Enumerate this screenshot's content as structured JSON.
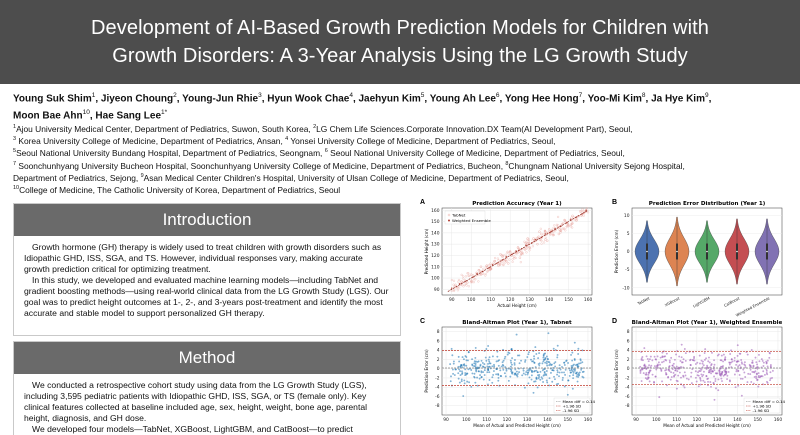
{
  "title": {
    "line1": "Development of AI-Based Growth Prediction Models for Children with",
    "line2": "Growth Disorders: A 3-Year Analysis Using the LG Growth Study"
  },
  "authors": {
    "line1": [
      {
        "name": "Young Suk Shim",
        "sup": "1"
      },
      {
        "name": "Jiyeon Choung",
        "sup": "2"
      },
      {
        "name": "Young-Jun Rhie",
        "sup": "3"
      },
      {
        "name": "Hyun Wook Chae",
        "sup": "4"
      },
      {
        "name": "Jaehyun Kim",
        "sup": "5"
      },
      {
        "name": "Young Ah Lee",
        "sup": "6"
      },
      {
        "name": "Yong Hee Hong",
        "sup": "7"
      },
      {
        "name": "Yoo-Mi Kim",
        "sup": "8"
      },
      {
        "name": "Ja Hye Kim",
        "sup": "9"
      }
    ],
    "line2": [
      {
        "name": "Moon Bae Ahn",
        "sup": "10"
      },
      {
        "name": "Hae Sang Lee",
        "sup": "1*"
      }
    ]
  },
  "affiliations": [
    [
      {
        "sup": "1",
        "text": "Ajou University Medical Center, Department of Pediatrics, Suwon, South Korea, "
      },
      {
        "sup": "2",
        "text": "LG Chem Life Sciences.Corporate Innovation.DX Team(AI Development Part), Seoul,"
      }
    ],
    [
      {
        "sup": "3",
        "text": " Korea University College of Medicine, Department of Pediatrics, Ansan, "
      },
      {
        "sup": "4",
        "text": " Yonsei University College of Medicine, Department of Pediatrics, Seoul,"
      }
    ],
    [
      {
        "sup": "5",
        "text": "Seoul National University Bundang Hospital, Department of Pediatrics, Seongnam, "
      },
      {
        "sup": "6",
        "text": " Seoul National University College of Medicine, Department of Pediatrics, Seoul,"
      }
    ],
    [
      {
        "sup": "7",
        "text": " Soonchunhyang University Bucheon Hospital, Soonchunhyang University College of Medicine, Department of Pediatrics, Bucheon, "
      },
      {
        "sup": "8",
        "text": "Chungnam National University Sejong Hospital,"
      }
    ],
    [
      {
        "sup": "",
        "text": "Department of Pediatrics, Sejong, "
      },
      {
        "sup": "9",
        "text": "Asan Medical Center Children's Hospital, University of Ulsan College of Medicine, Department of Pediatrics, Seoul,"
      }
    ],
    [
      {
        "sup": "10",
        "text": "College of Medicine, The Catholic University of Korea, Department of Pediatrics, Seoul"
      }
    ]
  ],
  "introduction": {
    "heading": "Introduction",
    "p1": "Growth hormone (GH) therapy is widely used to treat children with growth disorders such as Idiopathic GHD, ISS, SGA, and TS. However, individual responses vary, making accurate growth prediction critical for optimizing treatment.",
    "p2": "In this study, we developed and evaluated machine learning models—including TabNet and gradient boosting methods—using real-world clinical data from the LG Growth Study (LGS). Our goal was to predict height outcomes at 1-, 2-, and 3-years post-treatment and identify the most accurate and stable model to support personalized GH therapy."
  },
  "method": {
    "heading": "Method",
    "p1": "We conducted a retrospective cohort study using data from the LG Growth Study (LGS), including 3,595 pediatric patients with Idiopathic GHD, ISS, SGA, or TS (female only). Key clinical features collected at baseline included age, sex, height, weight, bone age, parental height, diagnosis, and GH dose.",
    "p2": "We developed four models—TabNet, XGBoost, LightGBM, and CatBoost—to predict"
  },
  "figure": {
    "colors": {
      "red": "#b03a2e",
      "blue": "#1f77b4",
      "purple": "#9b59b6",
      "orange": "#e07b39",
      "green": "#2ca02c"
    },
    "panels": {
      "A": {
        "letter": "A",
        "chart_data": {
          "type": "scatter",
          "title": "Prediction Accuracy (Year 1)",
          "xlabel": "Actual Height (cm)",
          "ylabel": "Predicted Height (cm)",
          "xlim": [
            85,
            162
          ],
          "ylim": [
            85,
            162
          ],
          "xticks": [
            90,
            100,
            110,
            120,
            130,
            140,
            150,
            160
          ],
          "yticks": [
            90,
            100,
            110,
            120,
            130,
            140,
            150,
            160
          ],
          "legend": [
            "TabNet",
            "Weighted Ensemble"
          ],
          "legend_position": "top-left",
          "grid": true,
          "series": [
            {
              "name": "TabNet",
              "color": "#e8a6a0",
              "points": [
                [
                  92,
                  93
                ],
                [
                  95,
                  97
                ],
                [
                  98,
                  96
                ],
                [
                  100,
                  103
                ],
                [
                  102,
                  99
                ],
                [
                  104,
                  107
                ],
                [
                  106,
                  104
                ],
                [
                  108,
                  111
                ],
                [
                  110,
                  108
                ],
                [
                  112,
                  115
                ],
                [
                  114,
                  111
                ],
                [
                  116,
                  119
                ],
                [
                  118,
                  115
                ],
                [
                  120,
                  123
                ],
                [
                  122,
                  119
                ],
                [
                  124,
                  127
                ],
                [
                  126,
                  122
                ],
                [
                  128,
                  131
                ],
                [
                  130,
                  127
                ],
                [
                  132,
                  135
                ],
                [
                  134,
                  130
                ],
                [
                  136,
                  139
                ],
                [
                  138,
                  134
                ],
                [
                  140,
                  143
                ],
                [
                  142,
                  138
                ],
                [
                  144,
                  147
                ],
                [
                  146,
                  142
                ],
                [
                  148,
                  151
                ],
                [
                  150,
                  146
                ],
                [
                  152,
                  155
                ],
                [
                  154,
                  151
                ],
                [
                  156,
                  159
                ],
                [
                  115,
                  121
                ],
                [
                  125,
                  118
                ],
                [
                  135,
                  141
                ],
                [
                  145,
                  139
                ],
                [
                  105,
                  110
                ],
                [
                  119,
                  113
                ],
                [
                  129,
                  135
                ],
                [
                  139,
                  133
                ]
              ]
            },
            {
              "name": "Weighted Ensemble",
              "color": "#b03a2e",
              "points": [
                [
                  90,
                  91
                ],
                [
                  94,
                  95
                ],
                [
                  97,
                  97
                ],
                [
                  101,
                  101
                ],
                [
                  103,
                  104
                ],
                [
                  106,
                  106
                ],
                [
                  109,
                  109
                ],
                [
                  111,
                  112
                ],
                [
                  113,
                  113
                ],
                [
                  116,
                  116
                ],
                [
                  118,
                  119
                ],
                [
                  121,
                  121
                ],
                [
                  123,
                  124
                ],
                [
                  126,
                  126
                ],
                [
                  128,
                  129
                ],
                [
                  131,
                  131
                ],
                [
                  133,
                  134
                ],
                [
                  136,
                  136
                ],
                [
                  138,
                  139
                ],
                [
                  141,
                  141
                ],
                [
                  143,
                  144
                ],
                [
                  146,
                  146
                ],
                [
                  149,
                  149
                ],
                [
                  151,
                  152
                ],
                [
                  154,
                  154
                ],
                [
                  157,
                  157
                ],
                [
                  159,
                  160
                ]
              ]
            }
          ]
        }
      },
      "B": {
        "letter": "B",
        "chart_data": {
          "type": "violin",
          "title": "Prediction Error Distribution (Year 1)",
          "ylabel": "Prediction Error (cm)",
          "ylim": [
            -12,
            12
          ],
          "yticks": [
            10,
            5,
            0,
            -5,
            -10
          ],
          "categories": [
            "TabNet",
            "XGBoost",
            "LightGBM",
            "CatBoost",
            "Weighted Ensemble"
          ],
          "colors": [
            "#4c72b0",
            "#dd8452",
            "#55a868",
            "#c44e52",
            "#8172b3"
          ],
          "spread": [
            8.5,
            9.5,
            8.5,
            9.0,
            9.0
          ]
        }
      },
      "C": {
        "letter": "C",
        "chart_data": {
          "type": "scatter",
          "title": "Bland-Altman Plot (Year 1), Tabnet",
          "xlabel": "Mean of Actual and Predicted Height (cm)",
          "ylabel": "Prediction Error (cm)",
          "xlim": [
            88,
            162
          ],
          "ylim": [
            -10,
            9
          ],
          "xticks": [
            90,
            100,
            110,
            120,
            130,
            140,
            150,
            160
          ],
          "yticks": [
            8,
            6,
            4,
            2,
            0,
            -2,
            -4,
            -6,
            -8
          ],
          "color": "#1f77b4",
          "mean_diff": 0.14,
          "upper_loa": 3.9,
          "lower_loa": -3.6,
          "legend": [
            "Mean diff = 0.14",
            "+1.96 SD",
            "-1.96 SD"
          ],
          "legend_position": "lower-right",
          "grid": true
        }
      },
      "D": {
        "letter": "D",
        "chart_data": {
          "type": "scatter",
          "title": "Bland-Altman Plot (Year 1), Weighted Ensemble",
          "xlabel": "Mean of Actual and Predicted Height (cm)",
          "ylabel": "Prediction Error (cm)",
          "xlim": [
            88,
            162
          ],
          "ylim": [
            -10,
            9
          ],
          "xticks": [
            90,
            100,
            110,
            120,
            130,
            140,
            150,
            160
          ],
          "yticks": [
            8,
            6,
            4,
            2,
            0,
            -2,
            -4,
            -6,
            -8
          ],
          "color": "#9b59b6",
          "mean_diff": 0.14,
          "upper_loa": 3.7,
          "lower_loa": -3.4,
          "legend": [
            "Mean diff = 0.14",
            "+1.96 SD",
            "-1.96 SD"
          ],
          "legend_position": "lower-right",
          "grid": true
        }
      }
    }
  }
}
